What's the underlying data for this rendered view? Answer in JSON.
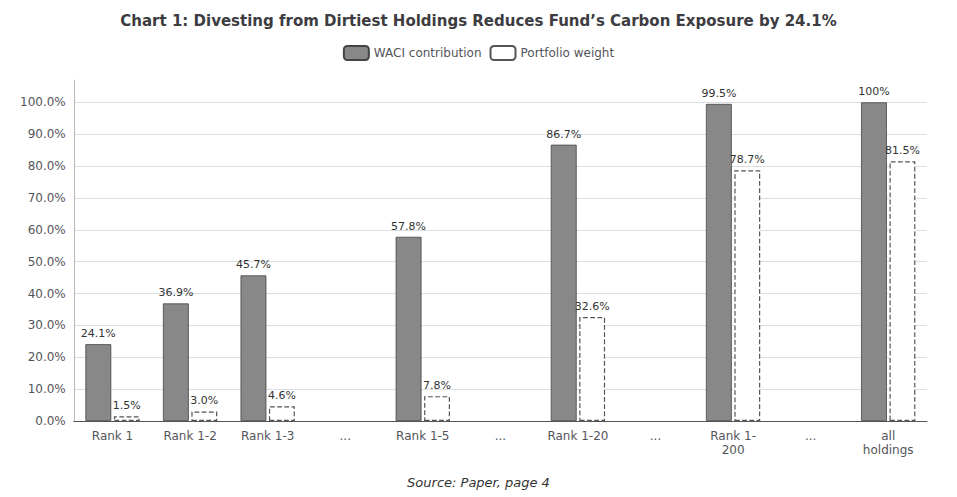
{
  "chart_data": {
    "type": "bar",
    "title": "Chart 1: Divesting from Dirtiest Holdings Reduces Fund’s Carbon Exposure by 24.1%",
    "source": "Source: Paper, page 4",
    "categories": [
      "Rank 1",
      "Rank 1-2",
      "Rank 1-3",
      "...",
      "Rank 1-5",
      "...",
      "Rank 1-20",
      "...",
      "Rank 1-\n200",
      "...",
      "all\nholdings"
    ],
    "series": [
      {
        "name": "WACI contribution",
        "color": "#888888",
        "values": [
          24.1,
          36.9,
          45.7,
          null,
          57.8,
          null,
          86.7,
          null,
          99.5,
          null,
          100.0
        ],
        "value_labels": [
          "24.1%",
          "36.9%",
          "45.7%",
          null,
          "57.8%",
          null,
          "86.7%",
          null,
          "99.5%",
          null,
          "100%"
        ]
      },
      {
        "name": "Portfolio weight",
        "color": "#ffffff",
        "line_style": "dashed",
        "values": [
          1.5,
          3.0,
          4.6,
          null,
          7.8,
          null,
          32.6,
          null,
          78.7,
          null,
          81.5
        ],
        "value_labels": [
          "1.5%",
          "3.0%",
          "4.6%",
          null,
          "7.8%",
          null,
          "32.6%",
          null,
          "78.7%",
          null,
          "81.5%"
        ]
      }
    ],
    "ylim": [
      0,
      107
    ],
    "yticks": [
      {
        "value": 0,
        "label": "0.0%"
      },
      {
        "value": 10.0,
        "label": "10.0%"
      },
      {
        "value": 20.0,
        "label": "20.0%"
      },
      {
        "value": 30.0,
        "label": "30.0%"
      },
      {
        "value": 40.0,
        "label": "40.0%"
      },
      {
        "value": 50.0,
        "label": "50.0%"
      },
      {
        "value": 60.0,
        "label": "60.0%"
      },
      {
        "value": 70.0,
        "label": "70.0%"
      },
      {
        "value": 80.0,
        "label": "80.0%"
      },
      {
        "value": 90.0,
        "label": "90.0%"
      },
      {
        "value": 100.0,
        "label": "100.0%"
      }
    ],
    "grid": true,
    "data_labels": true,
    "legend": "top"
  }
}
